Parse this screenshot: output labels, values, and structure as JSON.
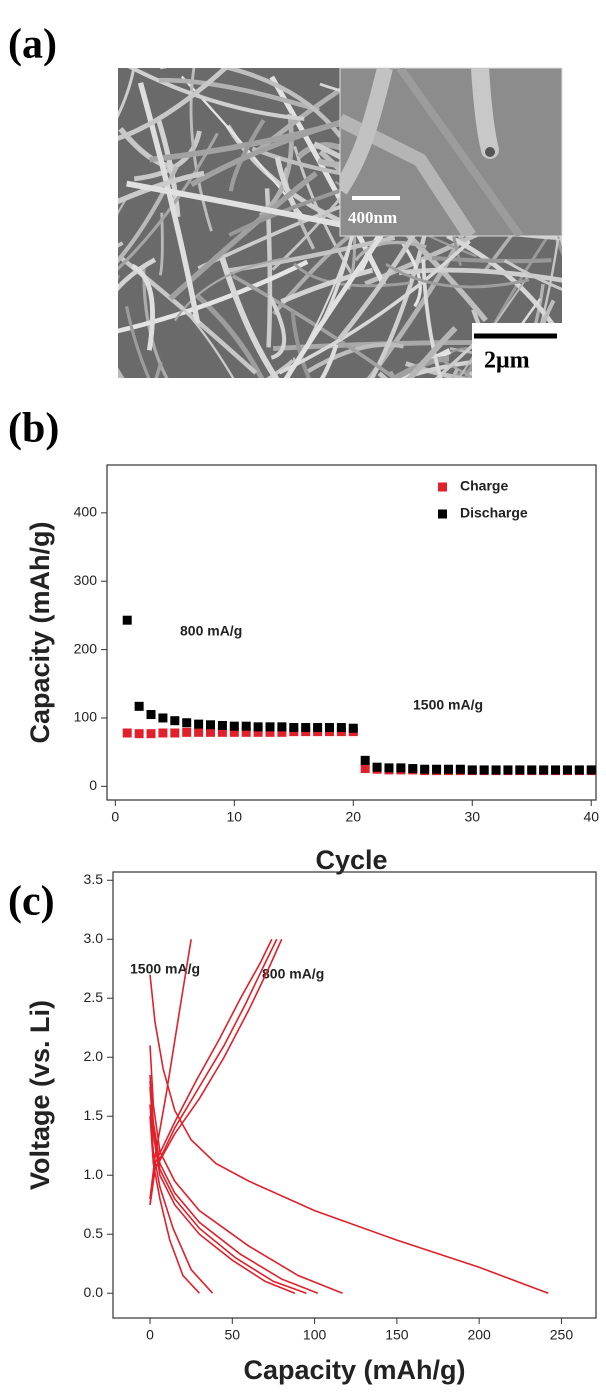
{
  "figure": {
    "panel_labels": [
      "(a)",
      "(b)",
      "(c)"
    ],
    "image": {
      "inset_scale_bar": "400nm",
      "scale_bar": "2μm"
    }
  },
  "chart_data": [
    {
      "type": "scatter",
      "xlabel": "Cycle",
      "ylabel": "Capacity (mAh/g)",
      "annotations": [
        "800 mA/g",
        "1500 mA/g"
      ],
      "x": [
        1,
        2,
        3,
        4,
        5,
        6,
        7,
        8,
        9,
        10,
        11,
        12,
        13,
        14,
        15,
        16,
        17,
        18,
        19,
        20,
        21,
        22,
        23,
        24,
        25,
        26,
        27,
        28,
        29,
        30,
        31,
        32,
        33,
        34,
        35,
        36,
        37,
        38,
        39,
        40
      ],
      "series": [
        {
          "name": "Charge",
          "color": "#e0202a",
          "values": [
            78,
            77,
            77,
            78,
            78,
            79,
            79,
            79,
            79,
            79,
            79,
            79,
            79,
            79,
            80,
            80,
            80,
            80,
            80,
            80,
            26,
            25,
            24,
            24,
            24,
            23,
            23,
            23,
            23,
            23,
            23,
            23,
            23,
            23,
            23,
            23,
            23,
            23,
            23,
            23
          ]
        },
        {
          "name": "Discharge",
          "color": "#000000",
          "values": [
            243,
            117,
            105,
            100,
            96,
            93,
            91,
            90,
            89,
            88,
            88,
            87,
            87,
            87,
            86,
            86,
            86,
            86,
            86,
            85,
            38,
            28,
            27,
            27,
            26,
            25,
            25,
            25,
            25,
            24,
            24,
            24,
            24,
            24,
            24,
            24,
            24,
            24,
            24,
            24
          ]
        }
      ],
      "xlim": [
        -0.7,
        40.4
      ],
      "ylim": [
        -20,
        470
      ],
      "xticks": [
        0,
        10,
        20,
        30,
        40
      ],
      "yticks": [
        0,
        100,
        200,
        300,
        400
      ],
      "legend": "upper right"
    },
    {
      "type": "line",
      "xlabel": "Capacity (mAh/g)",
      "ylabel": "Voltage (vs. Li)",
      "annotations": [
        "1500 mA/g",
        "800 mA/g"
      ],
      "series": [
        {
          "color": "#e0202a",
          "x": [
            0,
            3,
            8,
            15,
            25,
            40,
            60,
            100,
            150,
            200,
            242
          ],
          "y": [
            2.7,
            2.3,
            1.9,
            1.55,
            1.3,
            1.1,
            0.95,
            0.7,
            0.45,
            0.22,
            0.0
          ]
        },
        {
          "color": "#e0202a",
          "x": [
            0,
            2,
            6,
            15,
            30,
            60,
            90,
            117
          ],
          "y": [
            2.1,
            1.6,
            1.2,
            0.95,
            0.7,
            0.4,
            0.15,
            0.0
          ]
        },
        {
          "color": "#e0202a",
          "x": [
            0,
            2,
            6,
            15,
            30,
            55,
            80,
            102
          ],
          "y": [
            1.85,
            1.45,
            1.1,
            0.85,
            0.6,
            0.33,
            0.12,
            0.0
          ]
        },
        {
          "color": "#e0202a",
          "x": [
            0,
            2,
            6,
            15,
            30,
            52,
            75,
            95
          ],
          "y": [
            1.8,
            1.4,
            1.05,
            0.8,
            0.55,
            0.3,
            0.1,
            0.0
          ]
        },
        {
          "color": "#e0202a",
          "x": [
            0,
            2,
            6,
            15,
            30,
            50,
            70,
            88
          ],
          "y": [
            1.75,
            1.35,
            1.0,
            0.75,
            0.5,
            0.28,
            0.1,
            0.0
          ]
        },
        {
          "color": "#e0202a",
          "x": [
            0,
            3,
            15,
            30,
            45,
            60,
            72,
            80
          ],
          "y": [
            0.75,
            1.05,
            1.35,
            1.65,
            2.0,
            2.4,
            2.75,
            3.0
          ]
        },
        {
          "color": "#e0202a",
          "x": [
            0,
            3,
            15,
            30,
            45,
            58,
            70,
            77
          ],
          "y": [
            0.75,
            1.05,
            1.4,
            1.75,
            2.1,
            2.45,
            2.8,
            3.0
          ]
        },
        {
          "color": "#e0202a",
          "x": [
            0,
            3,
            15,
            28,
            42,
            55,
            67,
            74
          ],
          "y": [
            0.8,
            1.1,
            1.45,
            1.8,
            2.15,
            2.5,
            2.8,
            3.0
          ]
        },
        {
          "color": "#e0202a",
          "x": [
            0,
            3,
            10,
            18,
            25
          ],
          "y": [
            0.8,
            1.15,
            1.7,
            2.4,
            3.0
          ]
        },
        {
          "color": "#e0202a",
          "x": [
            0,
            2,
            6,
            14,
            25,
            38
          ],
          "y": [
            1.6,
            1.2,
            0.9,
            0.55,
            0.2,
            0.0
          ]
        },
        {
          "color": "#e0202a",
          "x": [
            0,
            2,
            6,
            12,
            20,
            30
          ],
          "y": [
            1.5,
            1.1,
            0.8,
            0.45,
            0.15,
            0.0
          ]
        }
      ],
      "xlim": [
        -22.5,
        271
      ],
      "ylim": [
        -0.21,
        3.57
      ],
      "xticks": [
        0,
        50,
        100,
        150,
        200,
        250
      ],
      "yticks": [
        {
          "value": 0,
          "label": "0.0"
        },
        0.5,
        {
          "value": 1,
          "label": "1.0"
        },
        1.5,
        {
          "value": 2,
          "label": "2.0"
        },
        2.5,
        {
          "value": 3,
          "label": "3.0"
        },
        3.5
      ]
    }
  ]
}
